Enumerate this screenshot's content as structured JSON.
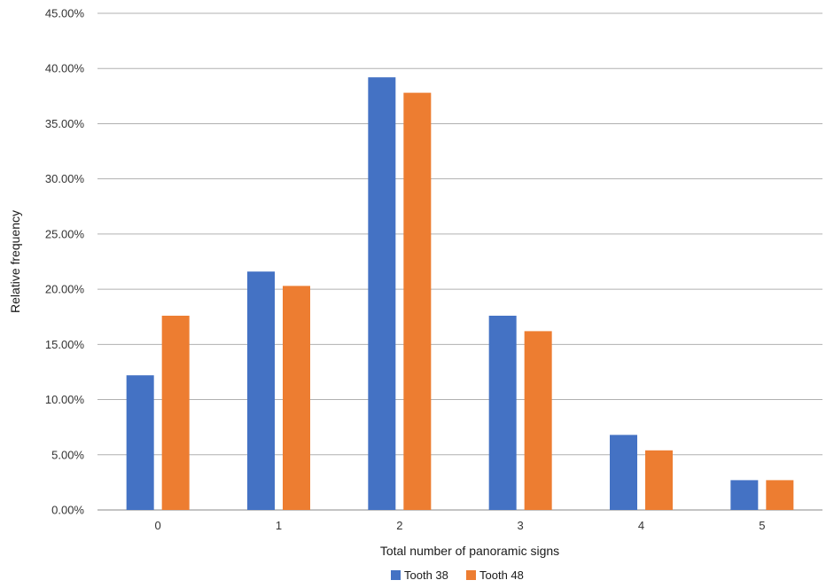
{
  "chart_data": {
    "type": "bar",
    "title": "",
    "xlabel": "Total number of panoramic signs",
    "ylabel": "Relative frequency",
    "categories": [
      "0",
      "1",
      "2",
      "3",
      "4",
      "5"
    ],
    "series": [
      {
        "name": "Tooth 38",
        "color": "#4472C4",
        "values": [
          12.2,
          21.6,
          39.2,
          17.6,
          6.8,
          2.7
        ]
      },
      {
        "name": "Tooth 48",
        "color": "#ED7D31",
        "values": [
          17.6,
          20.3,
          37.8,
          16.2,
          5.4,
          2.7
        ]
      }
    ],
    "ylim": [
      0,
      45
    ],
    "yticks": [
      "0.00%",
      "5.00%",
      "10.00%",
      "15.00%",
      "20.00%",
      "25.00%",
      "30.00%",
      "35.00%",
      "40.00%",
      "45.00%"
    ],
    "grid": true,
    "legend_position": "bottom-center"
  }
}
